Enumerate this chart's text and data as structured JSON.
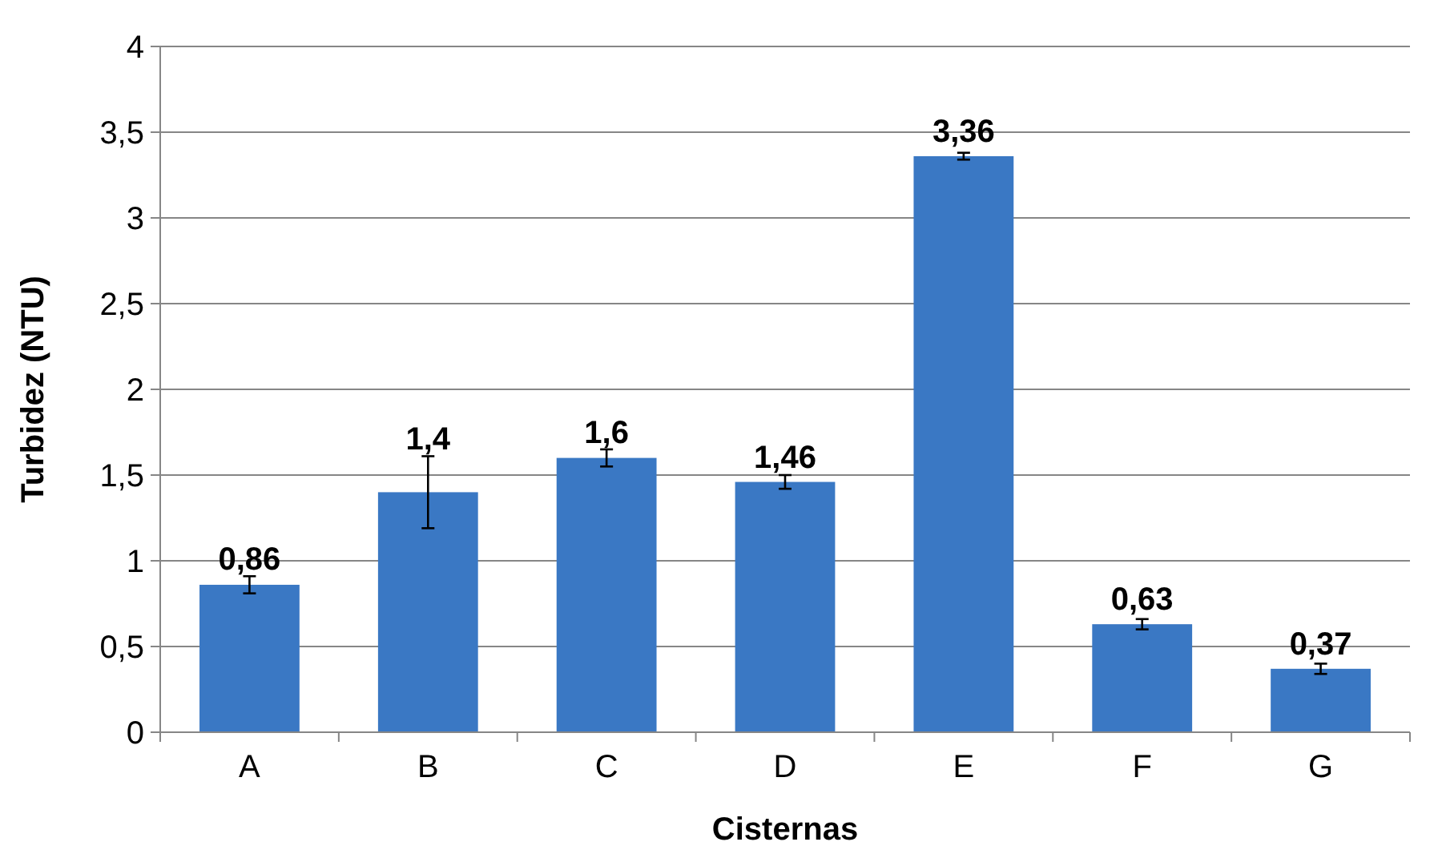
{
  "chart_data": {
    "type": "bar",
    "xlabel": "Cisternas",
    "ylabel": "Turbidez (NTU)",
    "categories": [
      "A",
      "B",
      "C",
      "D",
      "E",
      "F",
      "G"
    ],
    "values": [
      0.86,
      1.4,
      1.6,
      1.46,
      3.36,
      0.63,
      0.37
    ],
    "value_labels": [
      "0,86",
      "1,4",
      "1,6",
      "1,46",
      "3,36",
      "0,63",
      "0,37"
    ],
    "errors": [
      0.05,
      0.21,
      0.05,
      0.04,
      0.02,
      0.03,
      0.03
    ],
    "color": "#3a78c4",
    "ylim": [
      0,
      4
    ],
    "yticks": [
      0,
      {
        "value": 0.5,
        "label": "0,5"
      },
      1,
      {
        "value": 1.5,
        "label": "1,5"
      },
      2,
      {
        "value": 2.5,
        "label": "2,5"
      },
      3,
      {
        "value": 3.5,
        "label": "3,5"
      },
      4
    ],
    "grid": "y"
  }
}
